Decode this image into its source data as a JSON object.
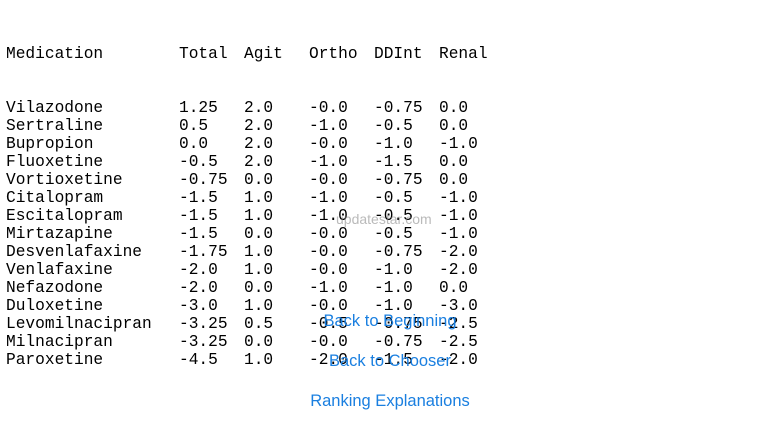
{
  "table": {
    "headers": [
      "Medication",
      "Total",
      "Agit",
      "Ortho",
      "DDInt",
      "Renal"
    ],
    "rows": [
      [
        "Vilazodone",
        "1.25",
        "2.0",
        "-0.0",
        "-0.75",
        "0.0"
      ],
      [
        "Sertraline",
        "0.5",
        "2.0",
        "-1.0",
        "-0.5",
        "0.0"
      ],
      [
        "Bupropion",
        "0.0",
        "2.0",
        "-0.0",
        "-1.0",
        "-1.0"
      ],
      [
        "Fluoxetine",
        "-0.5",
        "2.0",
        "-1.0",
        "-1.5",
        "0.0"
      ],
      [
        "Vortioxetine",
        "-0.75",
        "0.0",
        "-0.0",
        "-0.75",
        "0.0"
      ],
      [
        "Citalopram",
        "-1.5",
        "1.0",
        "-1.0",
        "-0.5",
        "-1.0"
      ],
      [
        "Escitalopram",
        "-1.5",
        "1.0",
        "-1.0",
        "-0.5",
        "-1.0"
      ],
      [
        "Mirtazapine",
        "-1.5",
        "0.0",
        "-0.0",
        "-0.5",
        "-1.0"
      ],
      [
        "Desvenlafaxine",
        "-1.75",
        "1.0",
        "-0.0",
        "-0.75",
        "-2.0"
      ],
      [
        "Venlafaxine",
        "-2.0",
        "1.0",
        "-0.0",
        "-1.0",
        "-2.0"
      ],
      [
        "Nefazodone",
        "-2.0",
        "0.0",
        "-1.0",
        "-1.0",
        "0.0"
      ],
      [
        "Duloxetine",
        "-3.0",
        "1.0",
        "-0.0",
        "-1.0",
        "-3.0"
      ],
      [
        "Levomilnacipran",
        "-3.25",
        "0.5",
        "-0.5",
        "-0.75",
        "-2.5"
      ],
      [
        "Milnacipran",
        "-3.25",
        "0.0",
        "-0.0",
        "-0.75",
        "-2.5"
      ],
      [
        "Paroxetine",
        "-4.5",
        "1.0",
        "-2.0",
        "-1.5",
        "-2.0"
      ]
    ]
  },
  "watermark": "updatestar.com",
  "buttons": {
    "back_to_beginning": "Back to Beginning",
    "back_to_chooser": "Back to Chooser",
    "ranking_explanations": "Ranking Explanations"
  },
  "colors": {
    "link": "#1a7fe0",
    "text": "#000000",
    "background": "#ffffff"
  }
}
